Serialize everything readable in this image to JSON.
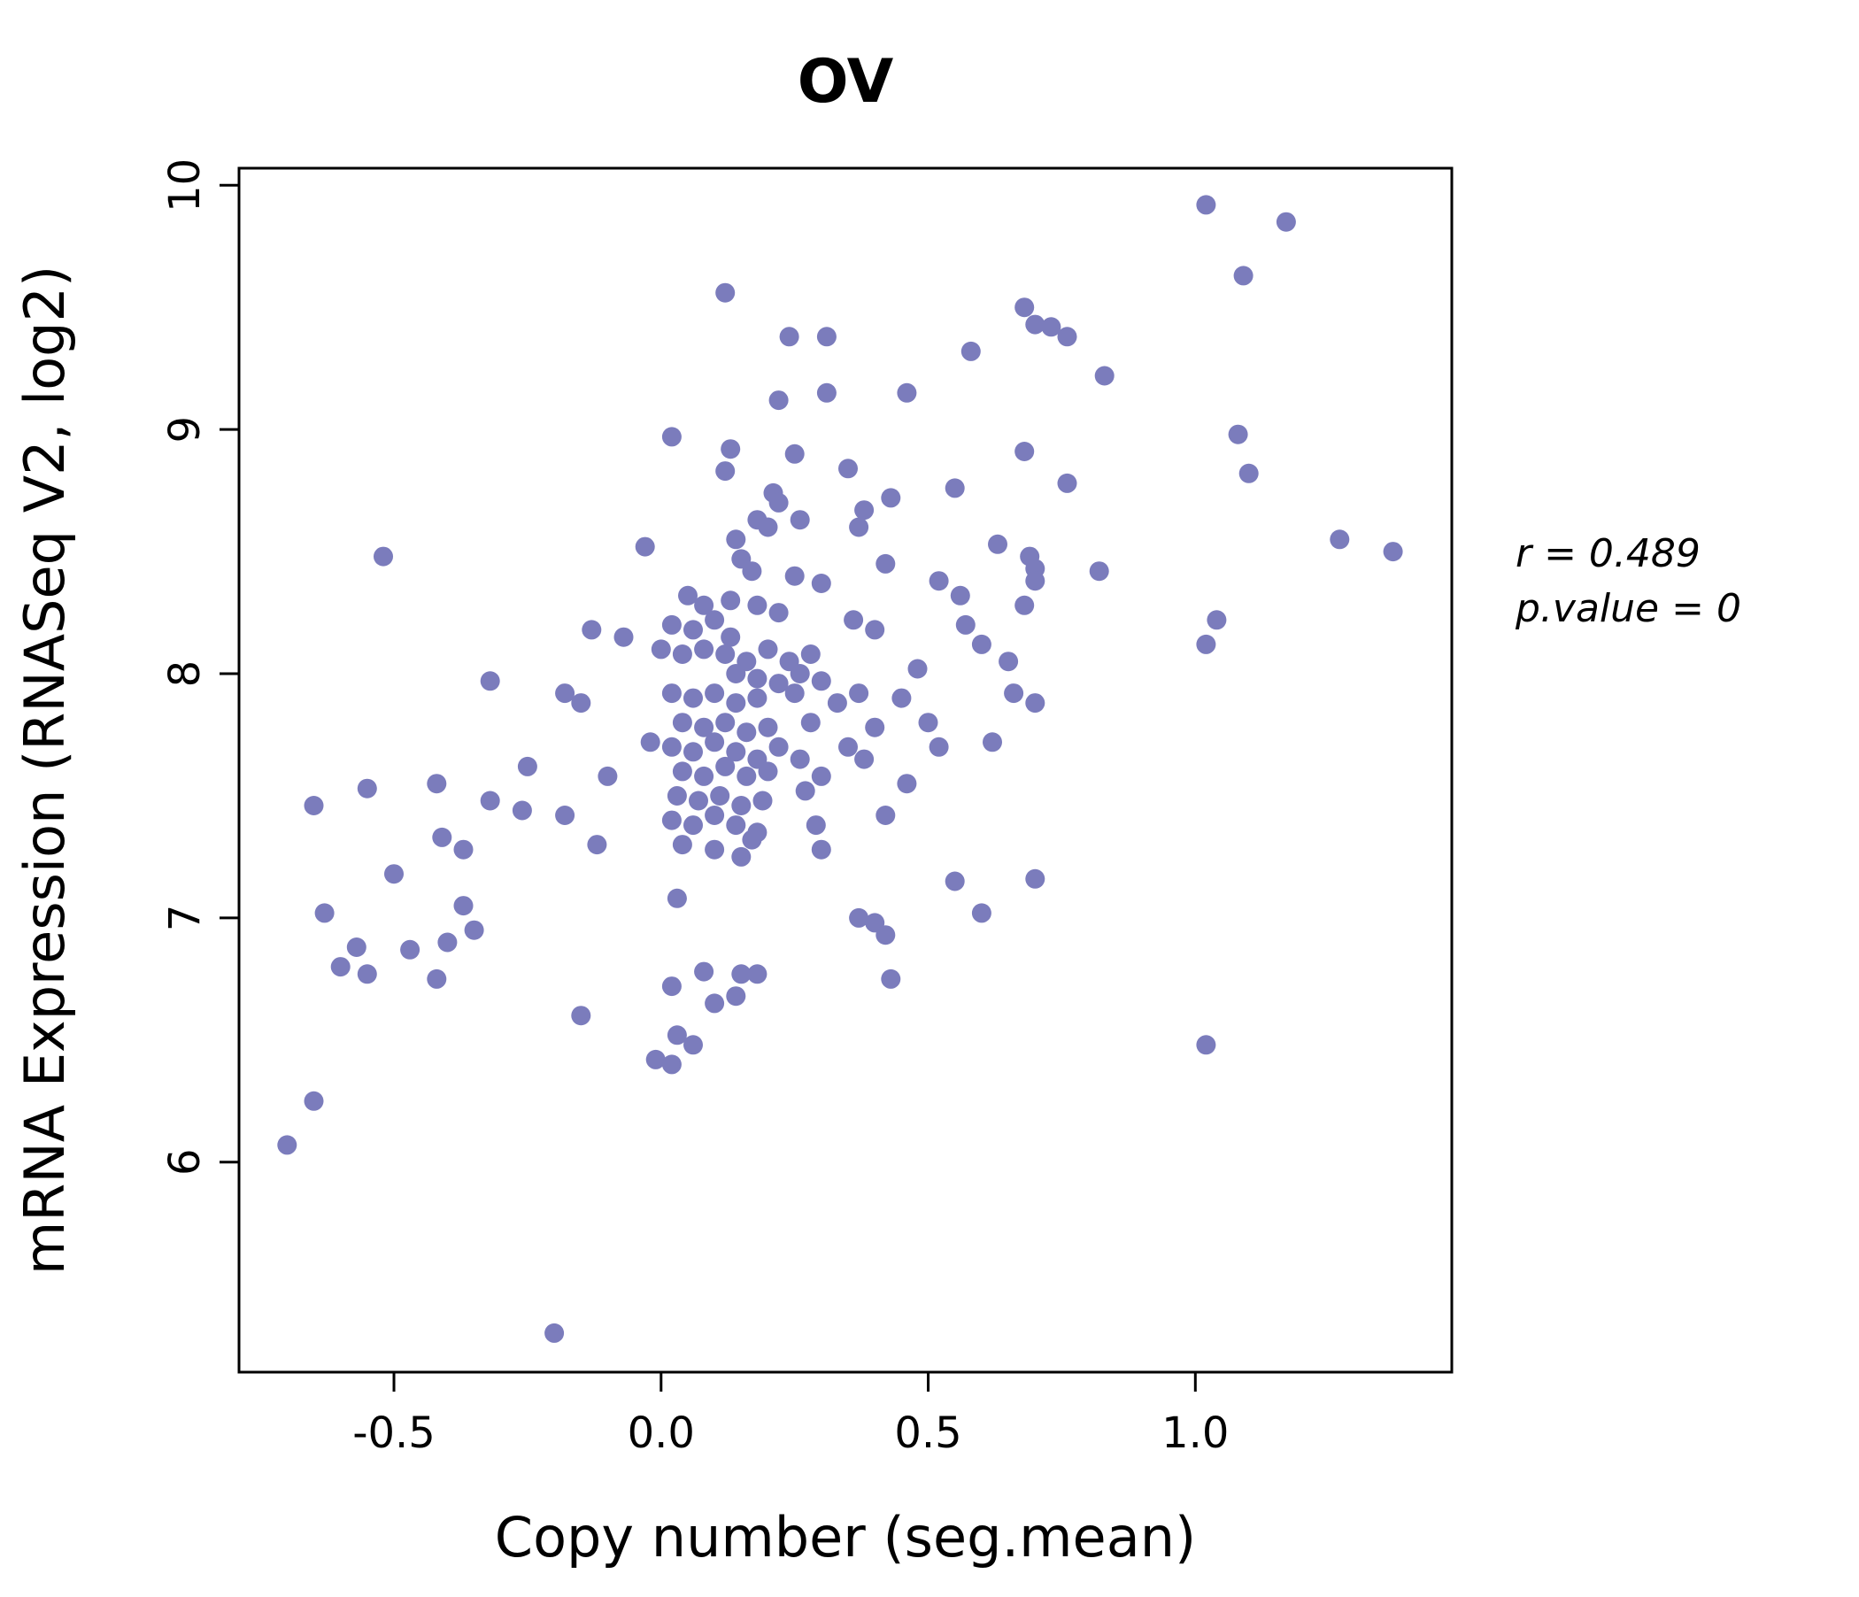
{
  "accent_color": "#7b7cbc",
  "chart_data": {
    "type": "scatter",
    "title": "OV",
    "xlabel": "Copy number (seg.mean)",
    "ylabel": "mRNA Expression (RNASeq V2, log2)",
    "xlim": [
      -0.79,
      1.48
    ],
    "ylim": [
      5.14,
      10.07
    ],
    "xticks": [
      -0.5,
      0.0,
      0.5,
      1.0
    ],
    "xtick_labels": [
      "-0.5",
      "0.0",
      "0.5",
      "1.0"
    ],
    "yticks": [
      6,
      7,
      8,
      9,
      10
    ],
    "ytick_labels": [
      "6",
      "7",
      "8",
      "9",
      "10"
    ],
    "grid": false,
    "legend": "none",
    "point_color": "#7b7cbc",
    "annotations": [
      "r = 0.489",
      "p.value = 0"
    ],
    "points": [
      [
        1.02,
        9.92
      ],
      [
        1.17,
        9.85
      ],
      [
        1.09,
        9.63
      ],
      [
        0.12,
        9.56
      ],
      [
        0.68,
        9.5
      ],
      [
        0.7,
        9.43
      ],
      [
        0.73,
        9.42
      ],
      [
        0.76,
        9.38
      ],
      [
        0.24,
        9.38
      ],
      [
        0.31,
        9.38
      ],
      [
        0.58,
        9.32
      ],
      [
        0.83,
        9.22
      ],
      [
        0.22,
        9.12
      ],
      [
        0.31,
        9.15
      ],
      [
        0.46,
        9.15
      ],
      [
        1.08,
        8.98
      ],
      [
        0.02,
        8.97
      ],
      [
        0.13,
        8.92
      ],
      [
        0.25,
        8.9
      ],
      [
        0.68,
        8.91
      ],
      [
        0.12,
        8.83
      ],
      [
        0.35,
        8.84
      ],
      [
        1.1,
        8.82
      ],
      [
        0.76,
        8.78
      ],
      [
        0.21,
        8.74
      ],
      [
        0.22,
        8.7
      ],
      [
        0.43,
        8.72
      ],
      [
        0.38,
        8.67
      ],
      [
        0.55,
        8.76
      ],
      [
        0.18,
        8.63
      ],
      [
        0.2,
        8.6
      ],
      [
        0.26,
        8.63
      ],
      [
        0.37,
        8.6
      ],
      [
        0.14,
        8.55
      ],
      [
        0.63,
        8.53
      ],
      [
        0.69,
        8.48
      ],
      [
        1.27,
        8.55
      ],
      [
        1.37,
        8.5
      ],
      [
        -0.52,
        8.48
      ],
      [
        0.42,
        8.45
      ],
      [
        0.7,
        8.43
      ],
      [
        0.82,
        8.42
      ],
      [
        -0.03,
        8.52
      ],
      [
        0.15,
        8.47
      ],
      [
        0.17,
        8.42
      ],
      [
        0.25,
        8.4
      ],
      [
        0.3,
        8.37
      ],
      [
        0.52,
        8.38
      ],
      [
        0.56,
        8.32
      ],
      [
        0.05,
        8.32
      ],
      [
        0.08,
        8.28
      ],
      [
        0.13,
        8.3
      ],
      [
        0.18,
        8.28
      ],
      [
        0.22,
        8.25
      ],
      [
        0.7,
        8.38
      ],
      [
        0.68,
        8.28
      ],
      [
        0.02,
        8.2
      ],
      [
        0.06,
        8.18
      ],
      [
        0.1,
        8.22
      ],
      [
        0.13,
        8.15
      ],
      [
        0.36,
        8.22
      ],
      [
        0.4,
        8.18
      ],
      [
        0.57,
        8.2
      ],
      [
        0.6,
        8.12
      ],
      [
        1.04,
        8.22
      ],
      [
        1.02,
        8.12
      ],
      [
        -0.13,
        8.18
      ],
      [
        -0.07,
        8.15
      ],
      [
        0.0,
        8.1
      ],
      [
        0.04,
        8.08
      ],
      [
        0.08,
        8.1
      ],
      [
        0.12,
        8.08
      ],
      [
        0.16,
        8.05
      ],
      [
        0.2,
        8.1
      ],
      [
        0.24,
        8.05
      ],
      [
        0.28,
        8.08
      ],
      [
        0.14,
        8.0
      ],
      [
        0.18,
        7.98
      ],
      [
        0.22,
        7.96
      ],
      [
        0.26,
        8.0
      ],
      [
        0.3,
        7.97
      ],
      [
        0.65,
        8.05
      ],
      [
        0.48,
        8.02
      ],
      [
        -0.32,
        7.97
      ],
      [
        -0.18,
        7.92
      ],
      [
        -0.15,
        7.88
      ],
      [
        0.02,
        7.92
      ],
      [
        0.06,
        7.9
      ],
      [
        0.1,
        7.92
      ],
      [
        0.14,
        7.88
      ],
      [
        0.18,
        7.9
      ],
      [
        0.25,
        7.92
      ],
      [
        0.33,
        7.88
      ],
      [
        0.37,
        7.92
      ],
      [
        0.45,
        7.9
      ],
      [
        0.66,
        7.92
      ],
      [
        0.7,
        7.88
      ],
      [
        0.04,
        7.8
      ],
      [
        0.08,
        7.78
      ],
      [
        0.12,
        7.8
      ],
      [
        0.16,
        7.76
      ],
      [
        0.2,
        7.78
      ],
      [
        0.28,
        7.8
      ],
      [
        0.4,
        7.78
      ],
      [
        0.5,
        7.8
      ],
      [
        -0.02,
        7.72
      ],
      [
        0.02,
        7.7
      ],
      [
        0.06,
        7.68
      ],
      [
        0.1,
        7.72
      ],
      [
        0.14,
        7.68
      ],
      [
        0.18,
        7.65
      ],
      [
        0.22,
        7.7
      ],
      [
        0.26,
        7.65
      ],
      [
        0.35,
        7.7
      ],
      [
        0.38,
        7.65
      ],
      [
        0.52,
        7.7
      ],
      [
        0.62,
        7.72
      ],
      [
        -0.25,
        7.62
      ],
      [
        -0.1,
        7.58
      ],
      [
        0.04,
        7.6
      ],
      [
        0.08,
        7.58
      ],
      [
        0.12,
        7.62
      ],
      [
        0.16,
        7.58
      ],
      [
        0.2,
        7.6
      ],
      [
        0.3,
        7.58
      ],
      [
        0.03,
        7.5
      ],
      [
        0.07,
        7.48
      ],
      [
        0.11,
        7.5
      ],
      [
        0.15,
        7.46
      ],
      [
        0.19,
        7.48
      ],
      [
        0.27,
        7.52
      ],
      [
        0.46,
        7.55
      ],
      [
        -0.65,
        7.46
      ],
      [
        -0.55,
        7.53
      ],
      [
        -0.42,
        7.55
      ],
      [
        -0.32,
        7.48
      ],
      [
        -0.26,
        7.44
      ],
      [
        -0.18,
        7.42
      ],
      [
        0.02,
        7.4
      ],
      [
        0.06,
        7.38
      ],
      [
        0.1,
        7.42
      ],
      [
        0.14,
        7.38
      ],
      [
        0.18,
        7.35
      ],
      [
        0.29,
        7.38
      ],
      [
        0.42,
        7.42
      ],
      [
        -0.41,
        7.33
      ],
      [
        -0.37,
        7.28
      ],
      [
        -0.12,
        7.3
      ],
      [
        0.04,
        7.3
      ],
      [
        0.1,
        7.28
      ],
      [
        0.15,
        7.25
      ],
      [
        0.17,
        7.32
      ],
      [
        0.3,
        7.28
      ],
      [
        -0.5,
        7.18
      ],
      [
        0.55,
        7.15
      ],
      [
        0.7,
        7.16
      ],
      [
        0.03,
        7.08
      ],
      [
        -0.63,
        7.02
      ],
      [
        -0.37,
        7.05
      ],
      [
        0.37,
        7.0
      ],
      [
        0.4,
        6.98
      ],
      [
        0.6,
        7.02
      ],
      [
        -0.57,
        6.88
      ],
      [
        -0.47,
        6.87
      ],
      [
        -0.4,
        6.9
      ],
      [
        0.42,
        6.93
      ],
      [
        -0.6,
        6.8
      ],
      [
        -0.55,
        6.77
      ],
      [
        -0.42,
        6.75
      ],
      [
        -0.35,
        6.95
      ],
      [
        0.08,
        6.78
      ],
      [
        0.15,
        6.77
      ],
      [
        0.18,
        6.77
      ],
      [
        0.14,
        6.68
      ],
      [
        0.1,
        6.65
      ],
      [
        0.43,
        6.75
      ],
      [
        -0.15,
        6.6
      ],
      [
        0.02,
        6.72
      ],
      [
        0.03,
        6.52
      ],
      [
        0.06,
        6.48
      ],
      [
        -0.01,
        6.42
      ],
      [
        0.02,
        6.4
      ],
      [
        1.02,
        6.48
      ],
      [
        -0.65,
        6.25
      ],
      [
        -0.7,
        6.07
      ],
      [
        -0.2,
        5.3
      ]
    ]
  }
}
